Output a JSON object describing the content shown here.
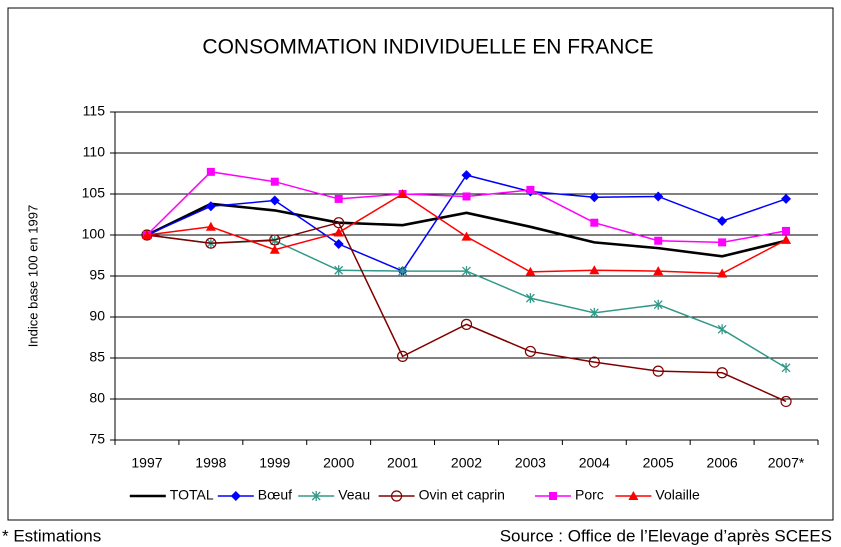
{
  "chart_data": {
    "type": "line",
    "title": "CONSOMMATION INDIVIDUELLE EN FRANCE",
    "y_label": "Indice base 100 en 1997",
    "note": "* Estimations",
    "source": "Source : Office de l’Elevage d’après SCEES",
    "categories": [
      "1997",
      "1998",
      "1999",
      "2000",
      "2001",
      "2002",
      "2003",
      "2004",
      "2005",
      "2006",
      "2007*"
    ],
    "ylim": [
      75,
      115
    ],
    "yticks": [
      75,
      80,
      85,
      90,
      95,
      100,
      105,
      110,
      115
    ],
    "grid": true,
    "legend": "bottom",
    "series": [
      {
        "name": "TOTAL",
        "color": "#000000",
        "marker": "none",
        "values": [
          100,
          103.8,
          103,
          101.5,
          101.2,
          102.7,
          101,
          99.1,
          98.4,
          97.4,
          99.3
        ]
      },
      {
        "name": "Bœuf",
        "color": "#0000ff",
        "marker": "diamond",
        "values": [
          100,
          103.5,
          104.2,
          98.9,
          95.6,
          107.3,
          105.3,
          104.6,
          104.7,
          101.7,
          104.4
        ]
      },
      {
        "name": "Veau",
        "color": "#339988",
        "marker": "star",
        "values": [
          100,
          99,
          99.3,
          95.7,
          95.6,
          95.6,
          92.3,
          90.5,
          91.5,
          88.5,
          83.8
        ]
      },
      {
        "name": "Ovin et caprin",
        "color": "#800000",
        "marker": "circle",
        "values": [
          100,
          99,
          99.4,
          101.5,
          85.2,
          89.1,
          85.8,
          84.5,
          83.4,
          83.2,
          79.7
        ]
      },
      {
        "name": "Porc",
        "color": "#ff00ff",
        "marker": "square",
        "values": [
          100,
          107.7,
          106.5,
          104.4,
          105,
          104.7,
          105.5,
          101.5,
          99.3,
          99.1,
          100.5
        ]
      },
      {
        "name": "Volaille",
        "color": "#ff0000",
        "marker": "triangle",
        "values": [
          100,
          101,
          98.2,
          100.3,
          105,
          99.8,
          95.5,
          95.7,
          95.6,
          95.3,
          99.4
        ]
      }
    ]
  }
}
